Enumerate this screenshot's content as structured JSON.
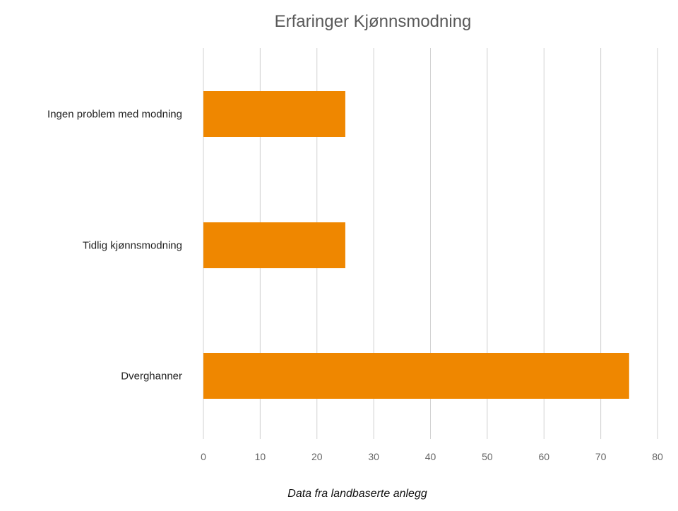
{
  "chart_data": {
    "type": "bar",
    "orientation": "horizontal",
    "title": "Erfaringer Kjønnsmodning",
    "xlabel": "Data fra landbaserte anlegg",
    "ylabel": "",
    "categories": [
      "Ingen problem med modning",
      "Tidlig kjønnsmodning",
      "Dverghanner"
    ],
    "values": [
      25,
      25,
      75
    ],
    "xlim": [
      0,
      80
    ],
    "xticks": [
      0,
      10,
      20,
      30,
      40,
      50,
      60,
      70,
      80
    ],
    "grid": "vertical",
    "legend": "none",
    "colors": {
      "bar": "#EF8700",
      "grid": "#D0D0D0",
      "title": "#595959"
    }
  }
}
